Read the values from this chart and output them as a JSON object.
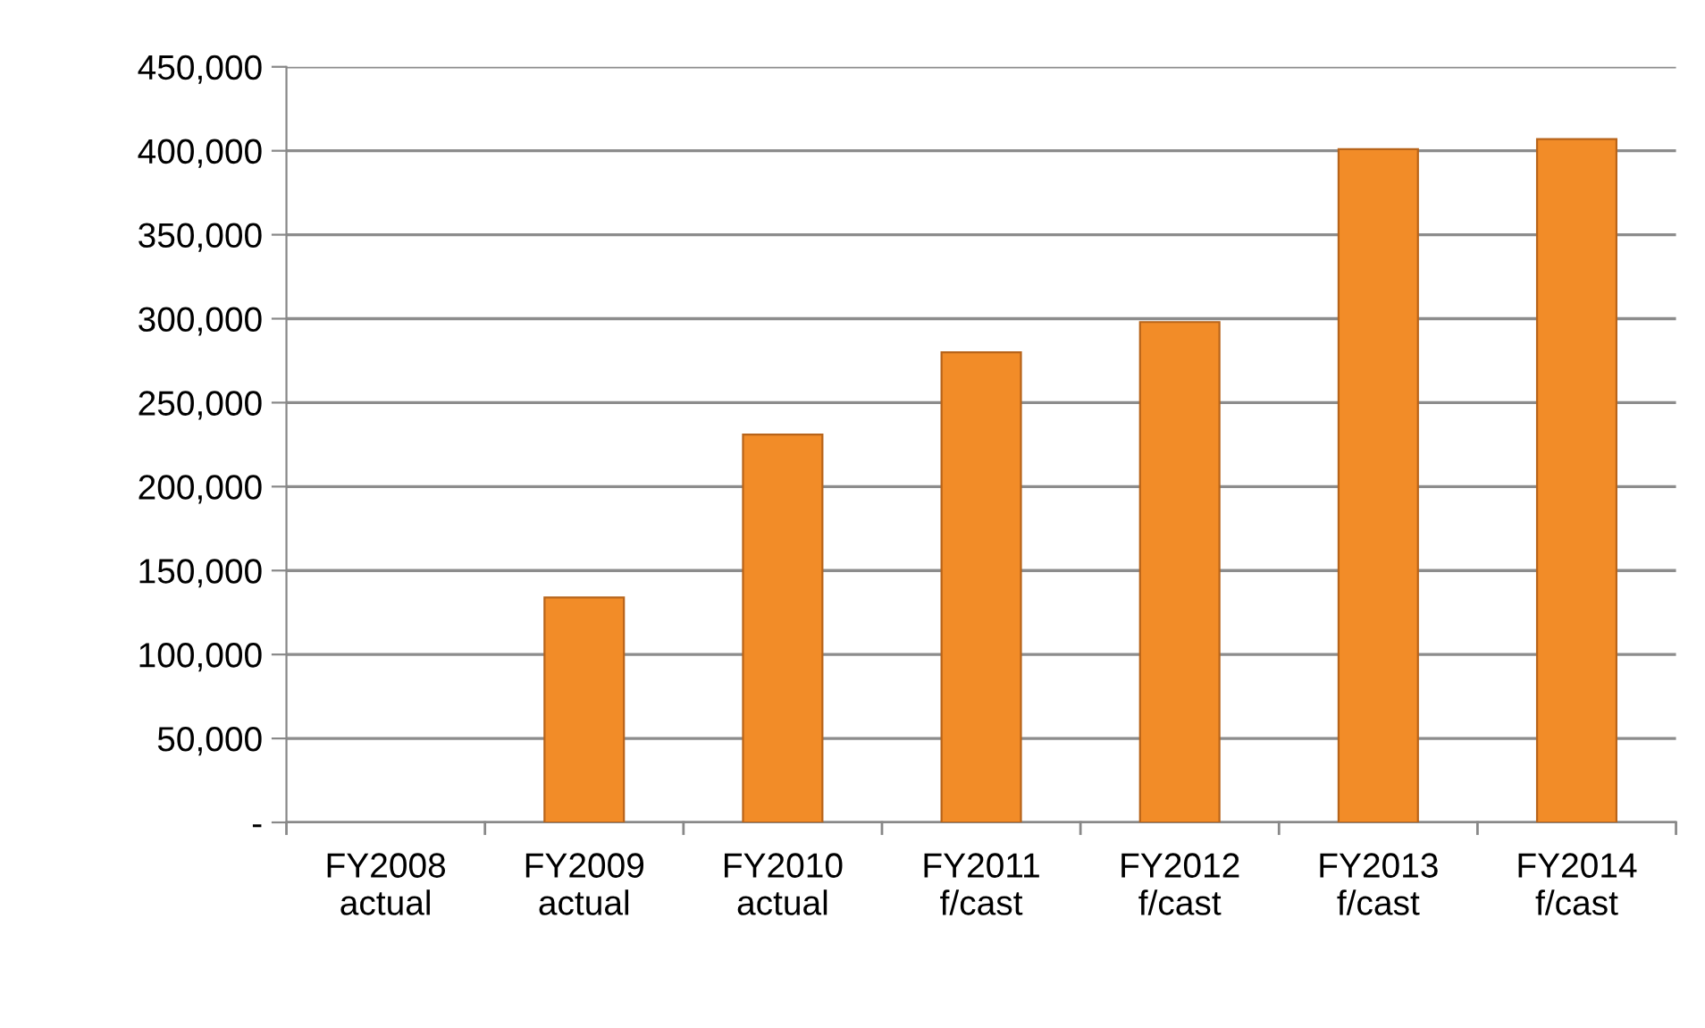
{
  "chart_data": {
    "type": "bar",
    "categories": [
      "FY2008\nactual",
      "FY2009\nactual",
      "FY2010\nactual",
      "FY2011\nf/cast",
      "FY2012\nf/cast",
      "FY2013\nf/cast",
      "FY2014\nf/cast"
    ],
    "values": [
      null,
      134000,
      231000,
      280000,
      298000,
      401000,
      407000
    ],
    "color": "#f28c28",
    "ylim": [
      0,
      450000
    ],
    "yticks": [
      {
        "value": 0,
        "label": "-"
      },
      {
        "value": 50000,
        "label": "50,000"
      },
      {
        "value": 100000,
        "label": "100,000"
      },
      {
        "value": 150000,
        "label": "150,000"
      },
      {
        "value": 200000,
        "label": "200,000"
      },
      {
        "value": 250000,
        "label": "250,000"
      },
      {
        "value": 300000,
        "label": "300,000"
      },
      {
        "value": 350000,
        "label": "350,000"
      },
      {
        "value": 400000,
        "label": "400,000"
      },
      {
        "value": 450000,
        "label": "450,000"
      }
    ],
    "grid": "y",
    "legend": false
  }
}
